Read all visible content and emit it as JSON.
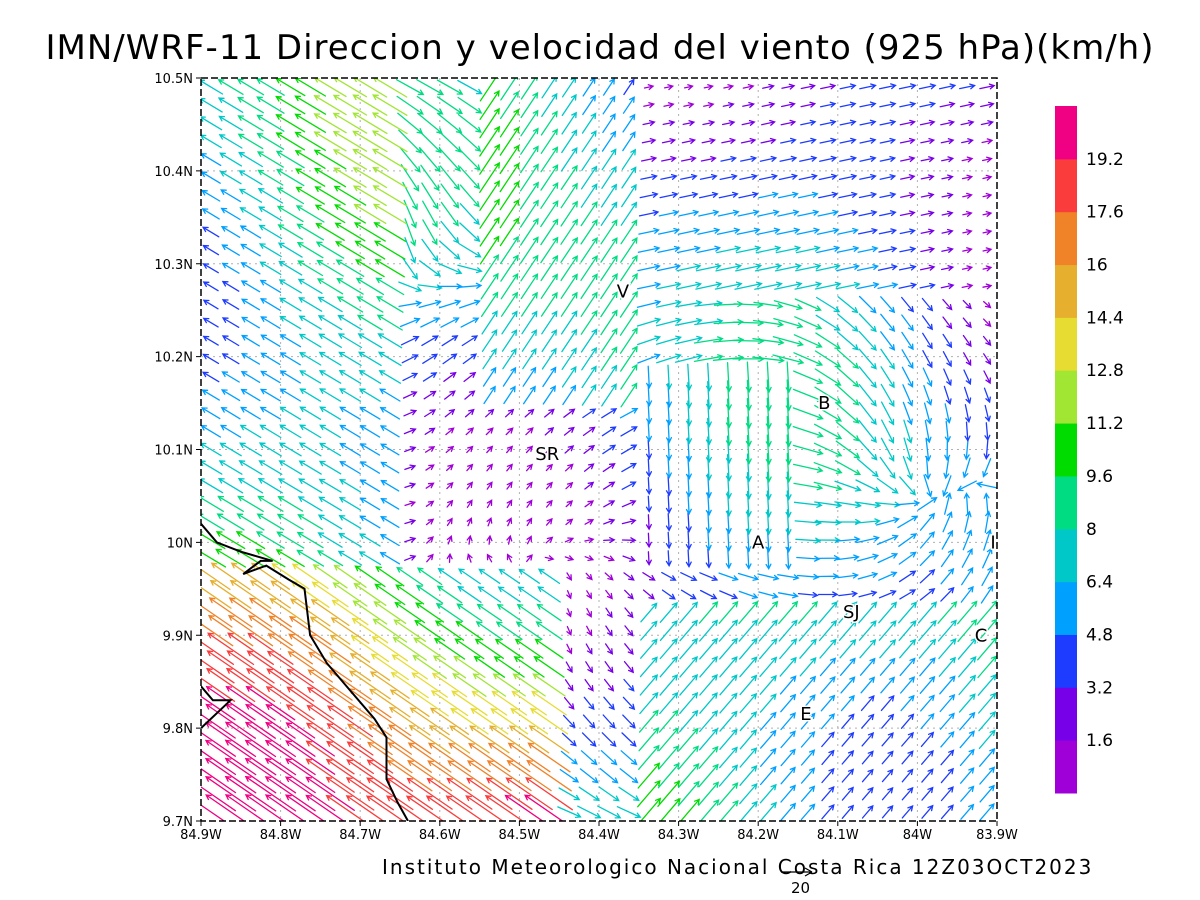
{
  "title": "IMN/WRF-11 Direccion y velocidad del viento (925 hPa)(km/h)",
  "footer": "Instituto Meteorologico Nacional Costa Rica 12Z03OCT2023",
  "reference_vector_label": "20",
  "map": {
    "lon_min": -84.9,
    "lon_max": -83.9,
    "lat_min": 9.7,
    "lat_max": 10.5,
    "x_ticks": [
      {
        "v": -84.9,
        "label": "84.9W"
      },
      {
        "v": -84.8,
        "label": "84.8W"
      },
      {
        "v": -84.7,
        "label": "84.7W"
      },
      {
        "v": -84.6,
        "label": "84.6W"
      },
      {
        "v": -84.5,
        "label": "84.5W"
      },
      {
        "v": -84.4,
        "label": "84.4W"
      },
      {
        "v": -84.3,
        "label": "84.3W"
      },
      {
        "v": -84.2,
        "label": "84.2W"
      },
      {
        "v": -84.1,
        "label": "84.1W"
      },
      {
        "v": -84.0,
        "label": "84W"
      },
      {
        "v": -83.9,
        "label": "83.9W"
      }
    ],
    "y_ticks": [
      {
        "v": 9.7,
        "label": "9.7N"
      },
      {
        "v": 9.8,
        "label": "9.8N"
      },
      {
        "v": 9.9,
        "label": "9.9N"
      },
      {
        "v": 10.0,
        "label": "10N"
      },
      {
        "v": 10.1,
        "label": "10.1N"
      },
      {
        "v": 10.2,
        "label": "10.2N"
      },
      {
        "v": 10.3,
        "label": "10.3N"
      },
      {
        "v": 10.4,
        "label": "10.4N"
      },
      {
        "v": 10.5,
        "label": "10.5N"
      }
    ],
    "places": [
      {
        "label": "V",
        "lon": -84.37,
        "lat": 10.27
      },
      {
        "label": "SR",
        "lon": -84.465,
        "lat": 10.095
      },
      {
        "label": "B",
        "lon": -84.117,
        "lat": 10.15
      },
      {
        "label": "A",
        "lon": -84.2,
        "lat": 10.0
      },
      {
        "label": "SJ",
        "lon": -84.083,
        "lat": 9.925
      },
      {
        "label": "C",
        "lon": -83.92,
        "lat": 9.9
      },
      {
        "label": "E",
        "lon": -84.14,
        "lat": 9.815
      },
      {
        "label": "I",
        "lon": -83.905,
        "lat": 10.0
      }
    ],
    "coastline": [
      [
        [
          -84.9,
          10.02
        ],
        [
          -84.88,
          10.0
        ],
        [
          -84.85,
          9.99
        ],
        [
          -84.83,
          9.985
        ],
        [
          -84.81,
          9.98
        ],
        [
          -84.825,
          9.98
        ],
        [
          -84.847,
          9.966
        ],
        [
          -84.818,
          9.975
        ],
        [
          -84.79,
          9.96
        ],
        [
          -84.77,
          9.95
        ],
        [
          -84.763,
          9.9
        ],
        [
          -84.742,
          9.87
        ],
        [
          -84.712,
          9.84
        ],
        [
          -84.682,
          9.81
        ],
        [
          -84.667,
          9.79
        ],
        [
          -84.667,
          9.745
        ],
        [
          -84.653,
          9.72
        ],
        [
          -84.64,
          9.7
        ]
      ],
      [
        [
          -84.9,
          9.845
        ],
        [
          -84.885,
          9.83
        ],
        [
          -84.863,
          9.83
        ],
        [
          -84.9,
          9.8
        ]
      ]
    ]
  },
  "colorbar": {
    "label_values": [
      "1.6",
      "3.2",
      "4.8",
      "6.4",
      "8",
      "9.6",
      "11.2",
      "12.8",
      "14.4",
      "16",
      "17.6",
      "19.2"
    ],
    "colors": [
      "#9f00d8",
      "#7800e8",
      "#1e3cff",
      "#00a0ff",
      "#00c8c8",
      "#00dc82",
      "#00dc00",
      "#a0e632",
      "#e6dc32",
      "#e6af2d",
      "#f08228",
      "#fa3c3c",
      "#f00082"
    ]
  }
}
